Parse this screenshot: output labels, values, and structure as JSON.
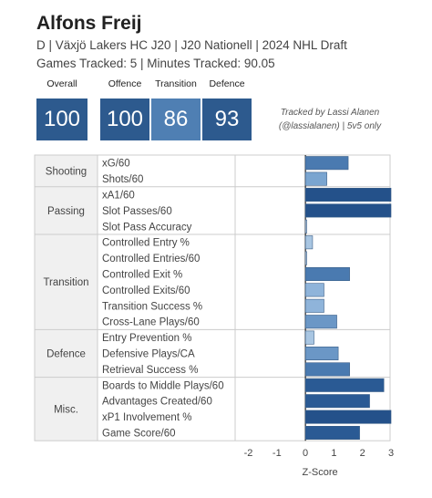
{
  "header": {
    "player_name": "Alfons Freij",
    "subtitle": "D | Växjö Lakers HC J20 | J20 Nationell | 2024 NHL Draft",
    "tracking": "Games Tracked: 5 | Minutes Tracked: 90.05",
    "credit_line1": "Tracked by Lassi Alanen",
    "credit_line2": "(@lassialanen) | 5v5 only"
  },
  "scores": [
    {
      "label": "Overall",
      "value": "100",
      "color": "#2d5a8e"
    },
    {
      "label": "Offence",
      "value": "100",
      "color": "#2d5a8e"
    },
    {
      "label": "Transition",
      "value": "86",
      "color": "#4f7fb3"
    },
    {
      "label": "Defence",
      "value": "93",
      "color": "#2d5a8e"
    }
  ],
  "chart_data": {
    "type": "bar",
    "orientation": "horizontal",
    "xlabel": "Z-Score",
    "xlim": [
      -2.4,
      3.1
    ],
    "xticks": [
      "-2",
      "-1",
      "0",
      "1",
      "2",
      "3"
    ],
    "groups": [
      {
        "name": "Shooting",
        "metrics": [
          {
            "label": "xG/60",
            "value": 1.5,
            "color": "#4a7ab0"
          },
          {
            "label": "Shots/60",
            "value": 0.75,
            "color": "#7aa5d0"
          }
        ]
      },
      {
        "name": "Passing",
        "metrics": [
          {
            "label": "xA1/60",
            "value": 3.0,
            "color": "#24518a"
          },
          {
            "label": "Slot Passes/60",
            "value": 3.0,
            "color": "#24518a"
          },
          {
            "label": "Slot Pass Accuracy",
            "value": 0.0,
            "color": "#c9daea"
          }
        ]
      },
      {
        "name": "Transition",
        "metrics": [
          {
            "label": "Controlled Entry %",
            "value": 0.25,
            "color": "#a9c6e2"
          },
          {
            "label": "Controlled Entries/60",
            "value": 0.05,
            "color": "#c9daea"
          },
          {
            "label": "Controlled Exit %",
            "value": 1.55,
            "color": "#4a7ab0"
          },
          {
            "label": "Controlled Exits/60",
            "value": 0.65,
            "color": "#8fb4da"
          },
          {
            "label": "Transition Success %",
            "value": 0.65,
            "color": "#8fb4da"
          },
          {
            "label": "Cross-Lane Plays/60",
            "value": 1.1,
            "color": "#6b97c6"
          }
        ]
      },
      {
        "name": "Defence",
        "metrics": [
          {
            "label": "Entry Prevention %",
            "value": 0.3,
            "color": "#a9c6e2"
          },
          {
            "label": "Defensive Plays/CA",
            "value": 1.15,
            "color": "#6b97c6"
          },
          {
            "label": "Retrieval Success %",
            "value": 1.55,
            "color": "#4a7ab0"
          }
        ]
      },
      {
        "name": "Misc.",
        "metrics": [
          {
            "label": "Boards to Middle Plays/60",
            "value": 2.75,
            "color": "#2a5a94"
          },
          {
            "label": "Advantages Created/60",
            "value": 2.25,
            "color": "#2a5a94"
          },
          {
            "label": "xP1 Involvement %",
            "value": 3.0,
            "color": "#24518a"
          },
          {
            "label": "Game Score/60",
            "value": 1.9,
            "color": "#2a5a94"
          }
        ]
      }
    ]
  }
}
